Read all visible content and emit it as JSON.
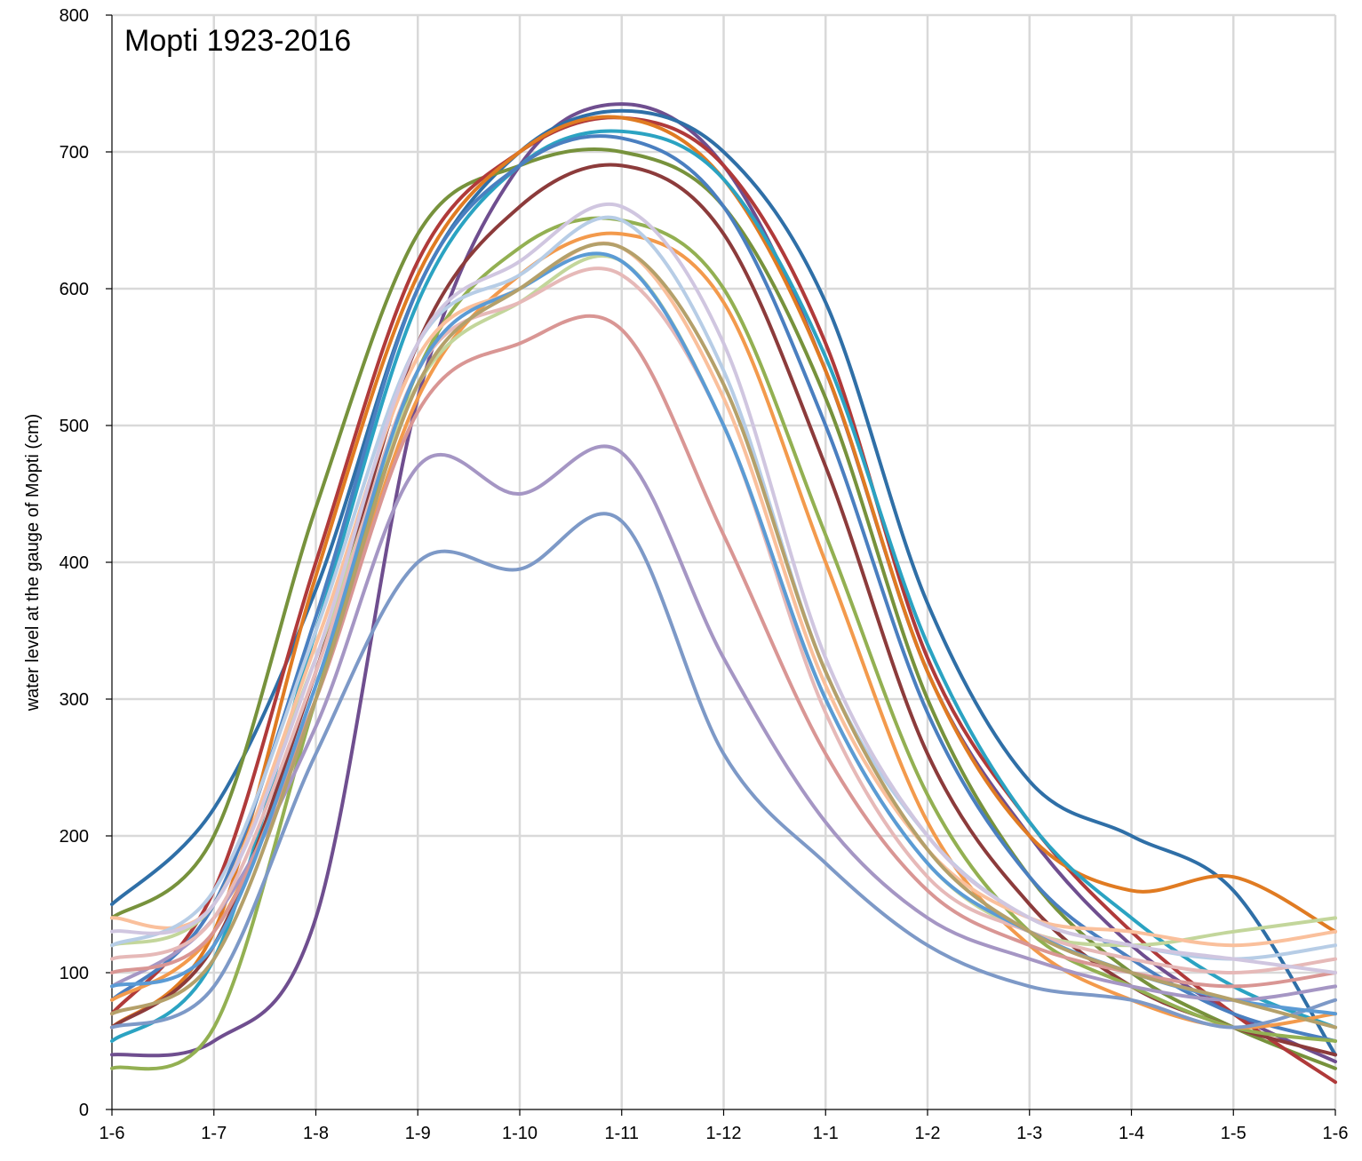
{
  "chart_data": {
    "type": "line",
    "title": "Mopti 1923-2016",
    "ylabel": "water level at the gauge of Mopti (cm)",
    "xlabel": "",
    "ylim": [
      0,
      800
    ],
    "yticks": [
      0,
      100,
      200,
      300,
      400,
      500,
      600,
      700,
      800
    ],
    "x_categories": [
      "1-6",
      "1-7",
      "1-8",
      "1-9",
      "1-10",
      "1-11",
      "1-12",
      "1-1",
      "1-2",
      "1-3",
      "1-4",
      "1-5",
      "1-6"
    ],
    "grid": true,
    "legend": "none",
    "series": [
      {
        "color": "#6f4e8f",
        "values": [
          40,
          50,
          140,
          520,
          690,
          735,
          690,
          540,
          320,
          200,
          120,
          70,
          35
        ]
      },
      {
        "color": "#2f6fa7",
        "values": [
          150,
          220,
          380,
          600,
          700,
          730,
          700,
          590,
          370,
          240,
          200,
          160,
          40
        ]
      },
      {
        "color": "#77923c",
        "values": [
          140,
          200,
          440,
          640,
          690,
          700,
          660,
          520,
          300,
          170,
          100,
          60,
          30
        ]
      },
      {
        "color": "#b03a3a",
        "values": [
          70,
          160,
          400,
          620,
          700,
          725,
          690,
          560,
          330,
          210,
          130,
          70,
          20
        ]
      },
      {
        "color": "#e07b22",
        "values": [
          60,
          130,
          390,
          610,
          700,
          725,
          680,
          540,
          320,
          200,
          160,
          170,
          130
        ]
      },
      {
        "color": "#2ba3c2",
        "values": [
          50,
          110,
          350,
          590,
          690,
          715,
          680,
          550,
          340,
          210,
          140,
          90,
          60
        ]
      },
      {
        "color": "#4a7fc0",
        "values": [
          80,
          150,
          360,
          600,
          690,
          710,
          660,
          500,
          290,
          170,
          110,
          70,
          50
        ]
      },
      {
        "color": "#8c3b3b",
        "values": [
          60,
          120,
          320,
          560,
          660,
          690,
          640,
          470,
          260,
          150,
          90,
          60,
          40
        ]
      },
      {
        "color": "#93b052",
        "values": [
          30,
          60,
          300,
          540,
          630,
          650,
          600,
          420,
          230,
          130,
          90,
          60,
          50
        ]
      },
      {
        "color": "#f39a4c",
        "values": [
          80,
          130,
          300,
          520,
          610,
          640,
          590,
          400,
          210,
          120,
          80,
          60,
          70
        ]
      },
      {
        "color": "#7d99c7",
        "values": [
          60,
          90,
          260,
          400,
          395,
          430,
          260,
          180,
          120,
          90,
          80,
          60,
          80
        ]
      },
      {
        "color": "#a596c4",
        "values": [
          90,
          140,
          280,
          470,
          450,
          480,
          330,
          210,
          140,
          110,
          90,
          80,
          90
        ]
      },
      {
        "color": "#d99694",
        "values": [
          100,
          130,
          300,
          510,
          560,
          570,
          420,
          260,
          160,
          120,
          100,
          90,
          100
        ]
      },
      {
        "color": "#c3d69b",
        "values": [
          120,
          150,
          330,
          530,
          590,
          620,
          500,
          300,
          180,
          130,
          120,
          130,
          140
        ]
      },
      {
        "color": "#fac09c",
        "values": [
          140,
          150,
          340,
          550,
          600,
          630,
          520,
          310,
          190,
          140,
          130,
          120,
          130
        ]
      },
      {
        "color": "#b7cde6",
        "values": [
          120,
          160,
          350,
          560,
          610,
          650,
          540,
          320,
          200,
          140,
          120,
          110,
          120
        ]
      },
      {
        "color": "#e6b9b8",
        "values": [
          110,
          140,
          320,
          540,
          590,
          610,
          500,
          290,
          170,
          130,
          110,
          100,
          110
        ]
      },
      {
        "color": "#d0c6e0",
        "values": [
          130,
          150,
          330,
          560,
          620,
          660,
          560,
          330,
          200,
          140,
          120,
          110,
          100
        ]
      },
      {
        "color": "#5b9bd5",
        "values": [
          90,
          120,
          310,
          540,
          600,
          620,
          500,
          300,
          180,
          130,
          100,
          80,
          70
        ]
      },
      {
        "color": "#b4a06a",
        "values": [
          70,
          110,
          300,
          530,
          600,
          630,
          530,
          320,
          190,
          130,
          100,
          80,
          60
        ]
      }
    ]
  }
}
